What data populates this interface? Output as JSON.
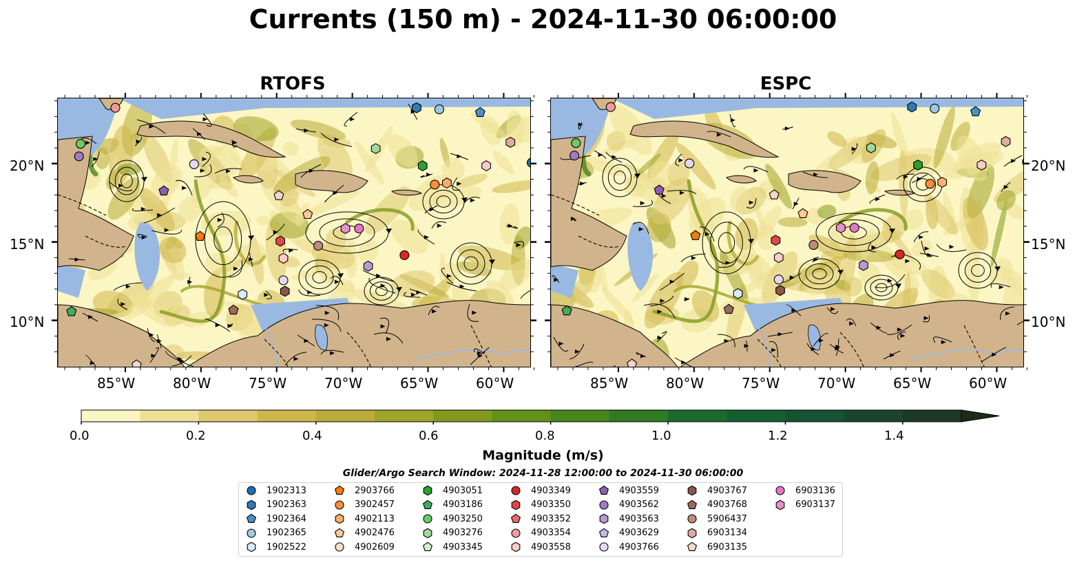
{
  "title": "Currents (150 m) - 2024-11-30 06:00:00",
  "panels": [
    {
      "title": "RTOFS"
    },
    {
      "title": "ESPC"
    }
  ],
  "axes": {
    "x_ticks": [
      "85°W",
      "80°W",
      "75°W",
      "70°W",
      "65°W",
      "60°W"
    ],
    "x_values": [
      -85,
      -80,
      -75,
      -70,
      -65,
      -60
    ],
    "y_ticks": [
      "20°N",
      "15°N",
      "10°N"
    ],
    "y_values": [
      20,
      15,
      10
    ],
    "lon_range": [
      -89.5,
      -58.2
    ],
    "lat_range": [
      7,
      24.2
    ]
  },
  "colorbar": {
    "label": "Magnitude (m/s)",
    "ticks": [
      "0.0",
      "0.2",
      "0.4",
      "0.6",
      "0.8",
      "1.0",
      "1.2",
      "1.4"
    ],
    "tick_values": [
      0,
      0.2,
      0.4,
      0.6,
      0.8,
      1.0,
      1.2,
      1.4
    ],
    "range": [
      0,
      1.5
    ],
    "extend": "max",
    "colors": [
      "#fbf6c4",
      "#efe096",
      "#dfc870",
      "#cfb64c",
      "#b9ac3a",
      "#9fa42a",
      "#83991e",
      "#629019",
      "#48851c",
      "#2f7a22",
      "#1b6b2e",
      "#135f32",
      "#155331",
      "#1a442d",
      "#1d3926",
      "#1c2b1a"
    ]
  },
  "search_window": "Glider/Argo Search Window: 2024-11-28 12:00:00 to 2024-11-30 06:00:00",
  "colors": {
    "land": "#d2b48c",
    "ocean": "#9ab9e2"
  },
  "legend": [
    {
      "id": "1902313",
      "color": "#1f6fb4",
      "shape": "circle"
    },
    {
      "id": "1902363",
      "color": "#2e79b8",
      "shape": "hexagon"
    },
    {
      "id": "1902364",
      "color": "#4a8fcc",
      "shape": "pentagon"
    },
    {
      "id": "1902365",
      "color": "#9ecae1",
      "shape": "circle"
    },
    {
      "id": "1902522",
      "color": "#d6ecf7",
      "shape": "hexagon"
    },
    {
      "id": "2903766",
      "color": "#f47c0e",
      "shape": "pentagon"
    },
    {
      "id": "3902457",
      "color": "#fd8d3c",
      "shape": "circle"
    },
    {
      "id": "4902113",
      "color": "#fdae6b",
      "shape": "hexagon"
    },
    {
      "id": "4902476",
      "color": "#fdc999",
      "shape": "pentagon"
    },
    {
      "id": "4902609",
      "color": "#fee1c8",
      "shape": "circle"
    },
    {
      "id": "4903051",
      "color": "#2ca02c",
      "shape": "hexagon"
    },
    {
      "id": "4903186",
      "color": "#41ab5d",
      "shape": "pentagon"
    },
    {
      "id": "4903250",
      "color": "#6acc64",
      "shape": "circle"
    },
    {
      "id": "4903276",
      "color": "#a1d99b",
      "shape": "hexagon"
    },
    {
      "id": "4903345",
      "color": "#d4f2c8",
      "shape": "pentagon"
    },
    {
      "id": "4903349",
      "color": "#d62728",
      "shape": "circle"
    },
    {
      "id": "4903350",
      "color": "#e0474a",
      "shape": "hexagon"
    },
    {
      "id": "4903352",
      "color": "#ec6a6a",
      "shape": "pentagon"
    },
    {
      "id": "4903354",
      "color": "#f29a9a",
      "shape": "circle"
    },
    {
      "id": "4903558",
      "color": "#fbcaca",
      "shape": "hexagon"
    },
    {
      "id": "4903559",
      "color": "#8a5fb0",
      "shape": "pentagon"
    },
    {
      "id": "4903562",
      "color": "#a07cc5",
      "shape": "circle"
    },
    {
      "id": "4903563",
      "color": "#b79ad6",
      "shape": "hexagon"
    },
    {
      "id": "4903629",
      "color": "#cdb7e6",
      "shape": "pentagon"
    },
    {
      "id": "4903766",
      "color": "#e6d8f5",
      "shape": "circle"
    },
    {
      "id": "4903767",
      "color": "#8c564b",
      "shape": "hexagon"
    },
    {
      "id": "4903768",
      "color": "#9c6a5e",
      "shape": "pentagon"
    },
    {
      "id": "5906437",
      "color": "#c08a7b",
      "shape": "circle"
    },
    {
      "id": "6903134",
      "color": "#e0ac9e",
      "shape": "hexagon"
    },
    {
      "id": "6903135",
      "color": "#f5d6cc",
      "shape": "pentagon"
    },
    {
      "id": "6903136",
      "color": "#e377c2",
      "shape": "circle"
    },
    {
      "id": "6903137",
      "color": "#e88fcd",
      "shape": "hexagon"
    }
  ],
  "floats": [
    {
      "id": "1902313",
      "lon": -58.2,
      "lat": 20.1
    },
    {
      "id": "1902363",
      "lon": -65.8,
      "lat": 23.6
    },
    {
      "id": "1902365",
      "lon": -64.3,
      "lat": 23.5
    },
    {
      "id": "1902364",
      "lon": -61.6,
      "lat": 23.3
    },
    {
      "id": "6903134",
      "lon": -59.6,
      "lat": 21.4
    },
    {
      "id": "4903558",
      "lon": -61.2,
      "lat": 19.9
    },
    {
      "id": "4903250",
      "lon": -88.0,
      "lat": 21.3
    },
    {
      "id": "4903562",
      "lon": -88.1,
      "lat": 20.5
    },
    {
      "id": "4903354",
      "lon": -85.7,
      "lat": 23.6
    },
    {
      "id": "4903766",
      "lon": -80.5,
      "lat": 20.0
    },
    {
      "id": "4903559",
      "lon": -82.5,
      "lat": 18.3
    },
    {
      "id": "4903276",
      "lon": -68.5,
      "lat": 21.0
    },
    {
      "id": "4903051",
      "lon": -65.4,
      "lat": 19.9
    },
    {
      "id": "3902457",
      "lon": -64.6,
      "lat": 18.7
    },
    {
      "id": "4902113",
      "lon": -63.8,
      "lat": 18.8
    },
    {
      "id": "6903135",
      "lon": -74.9,
      "lat": 18.0
    },
    {
      "id": "4902476",
      "lon": -73.0,
      "lat": 16.8
    },
    {
      "id": "2903766",
      "lon": -80.1,
      "lat": 15.4
    },
    {
      "id": "4903350",
      "lon": -74.8,
      "lat": 15.1
    },
    {
      "id": "5906437",
      "lon": -72.3,
      "lat": 14.8
    },
    {
      "id": "6903137",
      "lon": -70.5,
      "lat": 15.9
    },
    {
      "id": "6903136",
      "lon": -69.6,
      "lat": 15.9
    },
    {
      "id": "4903349",
      "lon": -66.6,
      "lat": 14.2
    },
    {
      "id": "4903563",
      "lon": -69.0,
      "lat": 13.5
    },
    {
      "id": "4903558b",
      "lon": -74.6,
      "lat": 14.0
    },
    {
      "id": "4903766b",
      "lon": -74.6,
      "lat": 12.6
    },
    {
      "id": "4903767",
      "lon": -74.5,
      "lat": 11.9
    },
    {
      "id": "1902522",
      "lon": -77.3,
      "lat": 11.7
    },
    {
      "id": "4903768",
      "lon": -77.9,
      "lat": 10.7
    },
    {
      "id": "4903186",
      "lon": -88.6,
      "lat": 10.6
    },
    {
      "id": "6903135b",
      "lon": -84.3,
      "lat": 7.2
    }
  ]
}
